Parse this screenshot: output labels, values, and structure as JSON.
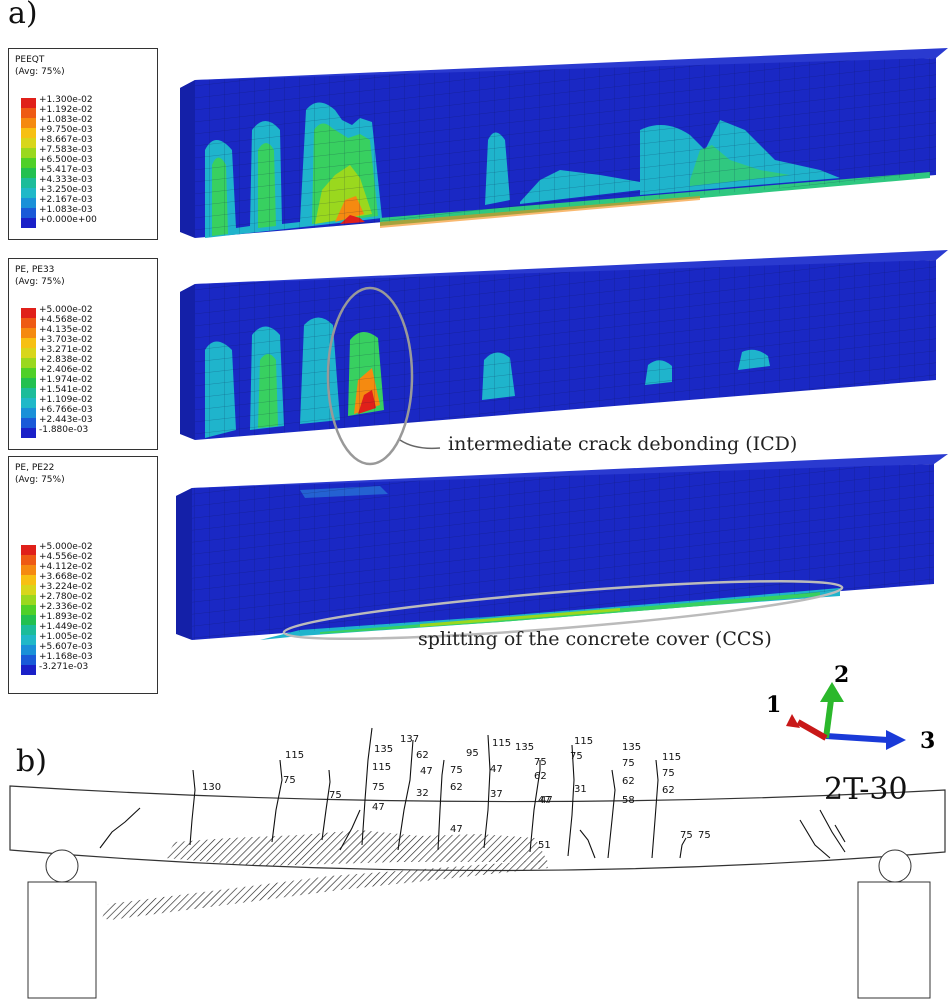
{
  "panel_a": {
    "label": "a)",
    "legends": [
      {
        "title": "PEEQT",
        "subtitle": "(Avg: 75%)",
        "values": [
          "+1.300e-02",
          "+1.192e-02",
          "+1.083e-02",
          "+9.750e-03",
          "+8.667e-03",
          "+7.583e-03",
          "+6.500e-03",
          "+5.417e-03",
          "+4.333e-03",
          "+3.250e-03",
          "+2.167e-03",
          "+1.083e-03",
          "+0.000e+00"
        ]
      },
      {
        "title": "PE, PE33",
        "subtitle": "(Avg: 75%)",
        "values": [
          "+5.000e-02",
          "+4.568e-02",
          "+4.135e-02",
          "+3.703e-02",
          "+3.271e-02",
          "+2.838e-02",
          "+2.406e-02",
          "+1.974e-02",
          "+1.541e-02",
          "+1.109e-02",
          "+6.766e-03",
          "+2.443e-03",
          "-1.880e-03"
        ]
      },
      {
        "title": "PE, PE22",
        "subtitle": "(Avg: 75%)",
        "values": [
          "+5.000e-02",
          "+4.556e-02",
          "+4.112e-02",
          "+3.668e-02",
          "+3.224e-02",
          "+2.780e-02",
          "+2.336e-02",
          "+1.893e-02",
          "+1.449e-02",
          "+1.005e-02",
          "+5.607e-03",
          "+1.168e-03",
          "-3.271e-03"
        ]
      }
    ],
    "scale_colors": [
      "#e0201a",
      "#ee5a14",
      "#f58a10",
      "#f7c012",
      "#d8d61a",
      "#9ad81e",
      "#4fd028",
      "#22c050",
      "#1cbc9a",
      "#20b8c8",
      "#1a90d8",
      "#1a5ad8",
      "#1a20c8"
    ],
    "annotations": {
      "icd": "intermediate crack debonding (ICD)",
      "ccs": "splitting of the concrete cover (CCS)"
    },
    "triad": {
      "axis1": "1",
      "axis2": "2",
      "axis3": "3"
    }
  },
  "panel_b": {
    "label": "b)",
    "specimen": "2T-30",
    "crack_loads": [
      "130",
      "115",
      "75",
      "75",
      "135",
      "115",
      "75",
      "47",
      "137",
      "62",
      "47",
      "32",
      "75",
      "62",
      "47",
      "95",
      "47",
      "37",
      "115",
      "135",
      "75",
      "62",
      "47",
      "115",
      "75",
      "31",
      "135",
      "75",
      "62",
      "58",
      "115",
      "75",
      "62",
      "75",
      "75",
      "51",
      "47"
    ]
  }
}
